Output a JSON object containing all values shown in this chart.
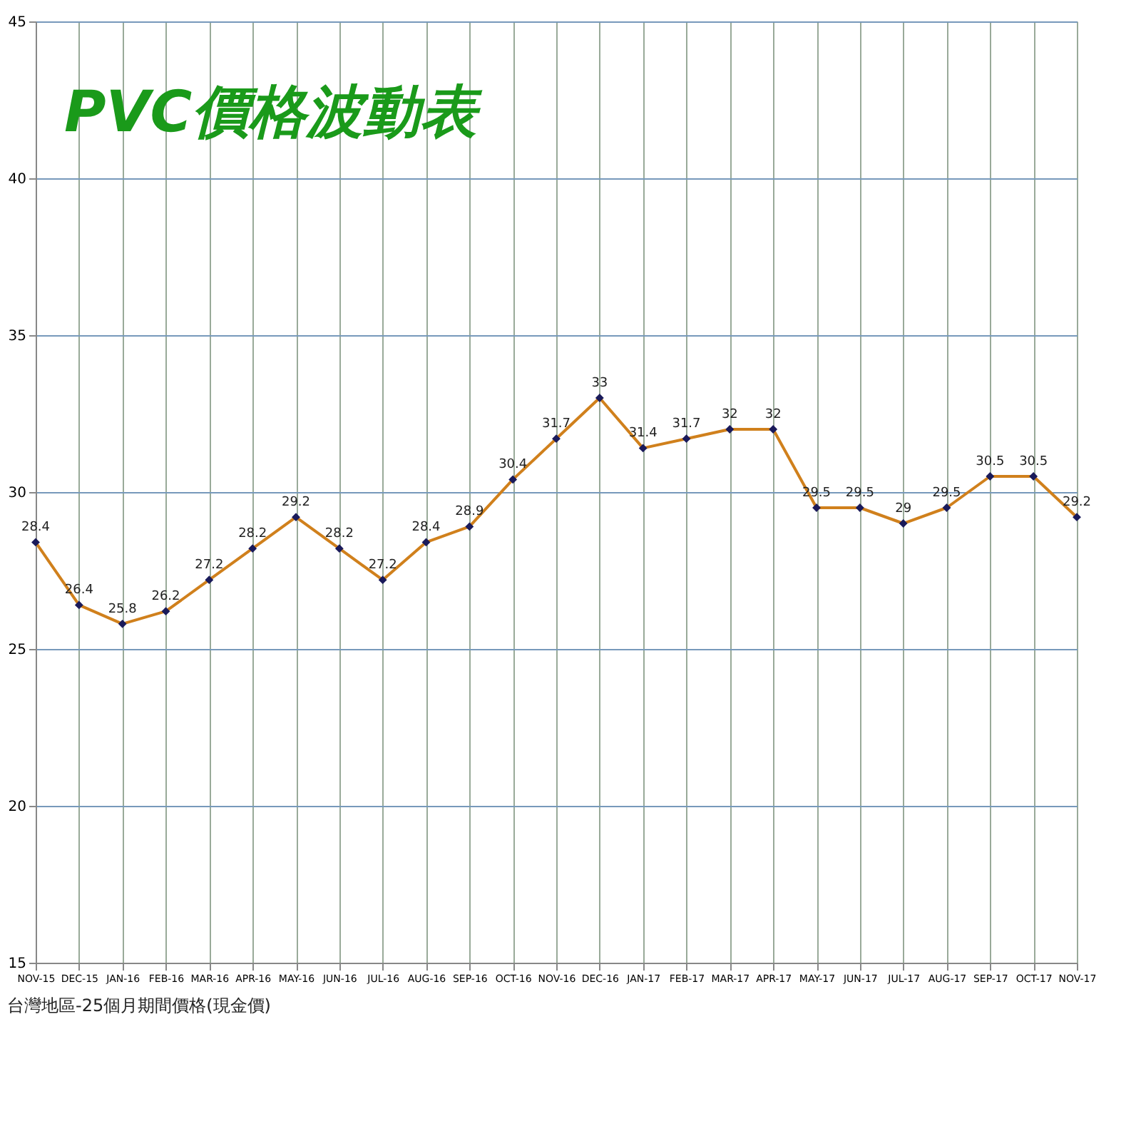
{
  "chart_data": {
    "type": "line",
    "title": "PVC價格波動表",
    "annotations": [
      "台灣地區-25個月期間價格(現金價)"
    ],
    "categories": [
      "NOV-15",
      "DEC-15",
      "JAN-16",
      "FEB-16",
      "MAR-16",
      "APR-16",
      "MAY-16",
      "JUN-16",
      "JUL-16",
      "AUG-16",
      "SEP-16",
      "OCT-16",
      "NOV-16",
      "DEC-16",
      "JAN-17",
      "FEB-17",
      "MAR-17",
      "APR-17",
      "MAY-17",
      "JUN-17",
      "JUL-17",
      "AUG-17",
      "SEP-17",
      "OCT-17",
      "NOV-17"
    ],
    "series": [
      {
        "color": "#d0801c",
        "values": [
          28.4,
          26.4,
          25.8,
          26.2,
          27.2,
          28.2,
          29.2,
          28.2,
          27.2,
          28.4,
          28.9,
          30.4,
          31.7,
          33,
          31.4,
          31.7,
          32,
          32,
          29.5,
          29.5,
          29,
          29.5,
          30.5,
          30.5,
          29.2
        ]
      }
    ],
    "ylim": [
      15,
      45
    ],
    "yticks": [
      15,
      20,
      25,
      30,
      35,
      40,
      45
    ],
    "grid": true,
    "legend": false,
    "marker": "diamond",
    "line_style": "solid",
    "data_labels": true
  }
}
